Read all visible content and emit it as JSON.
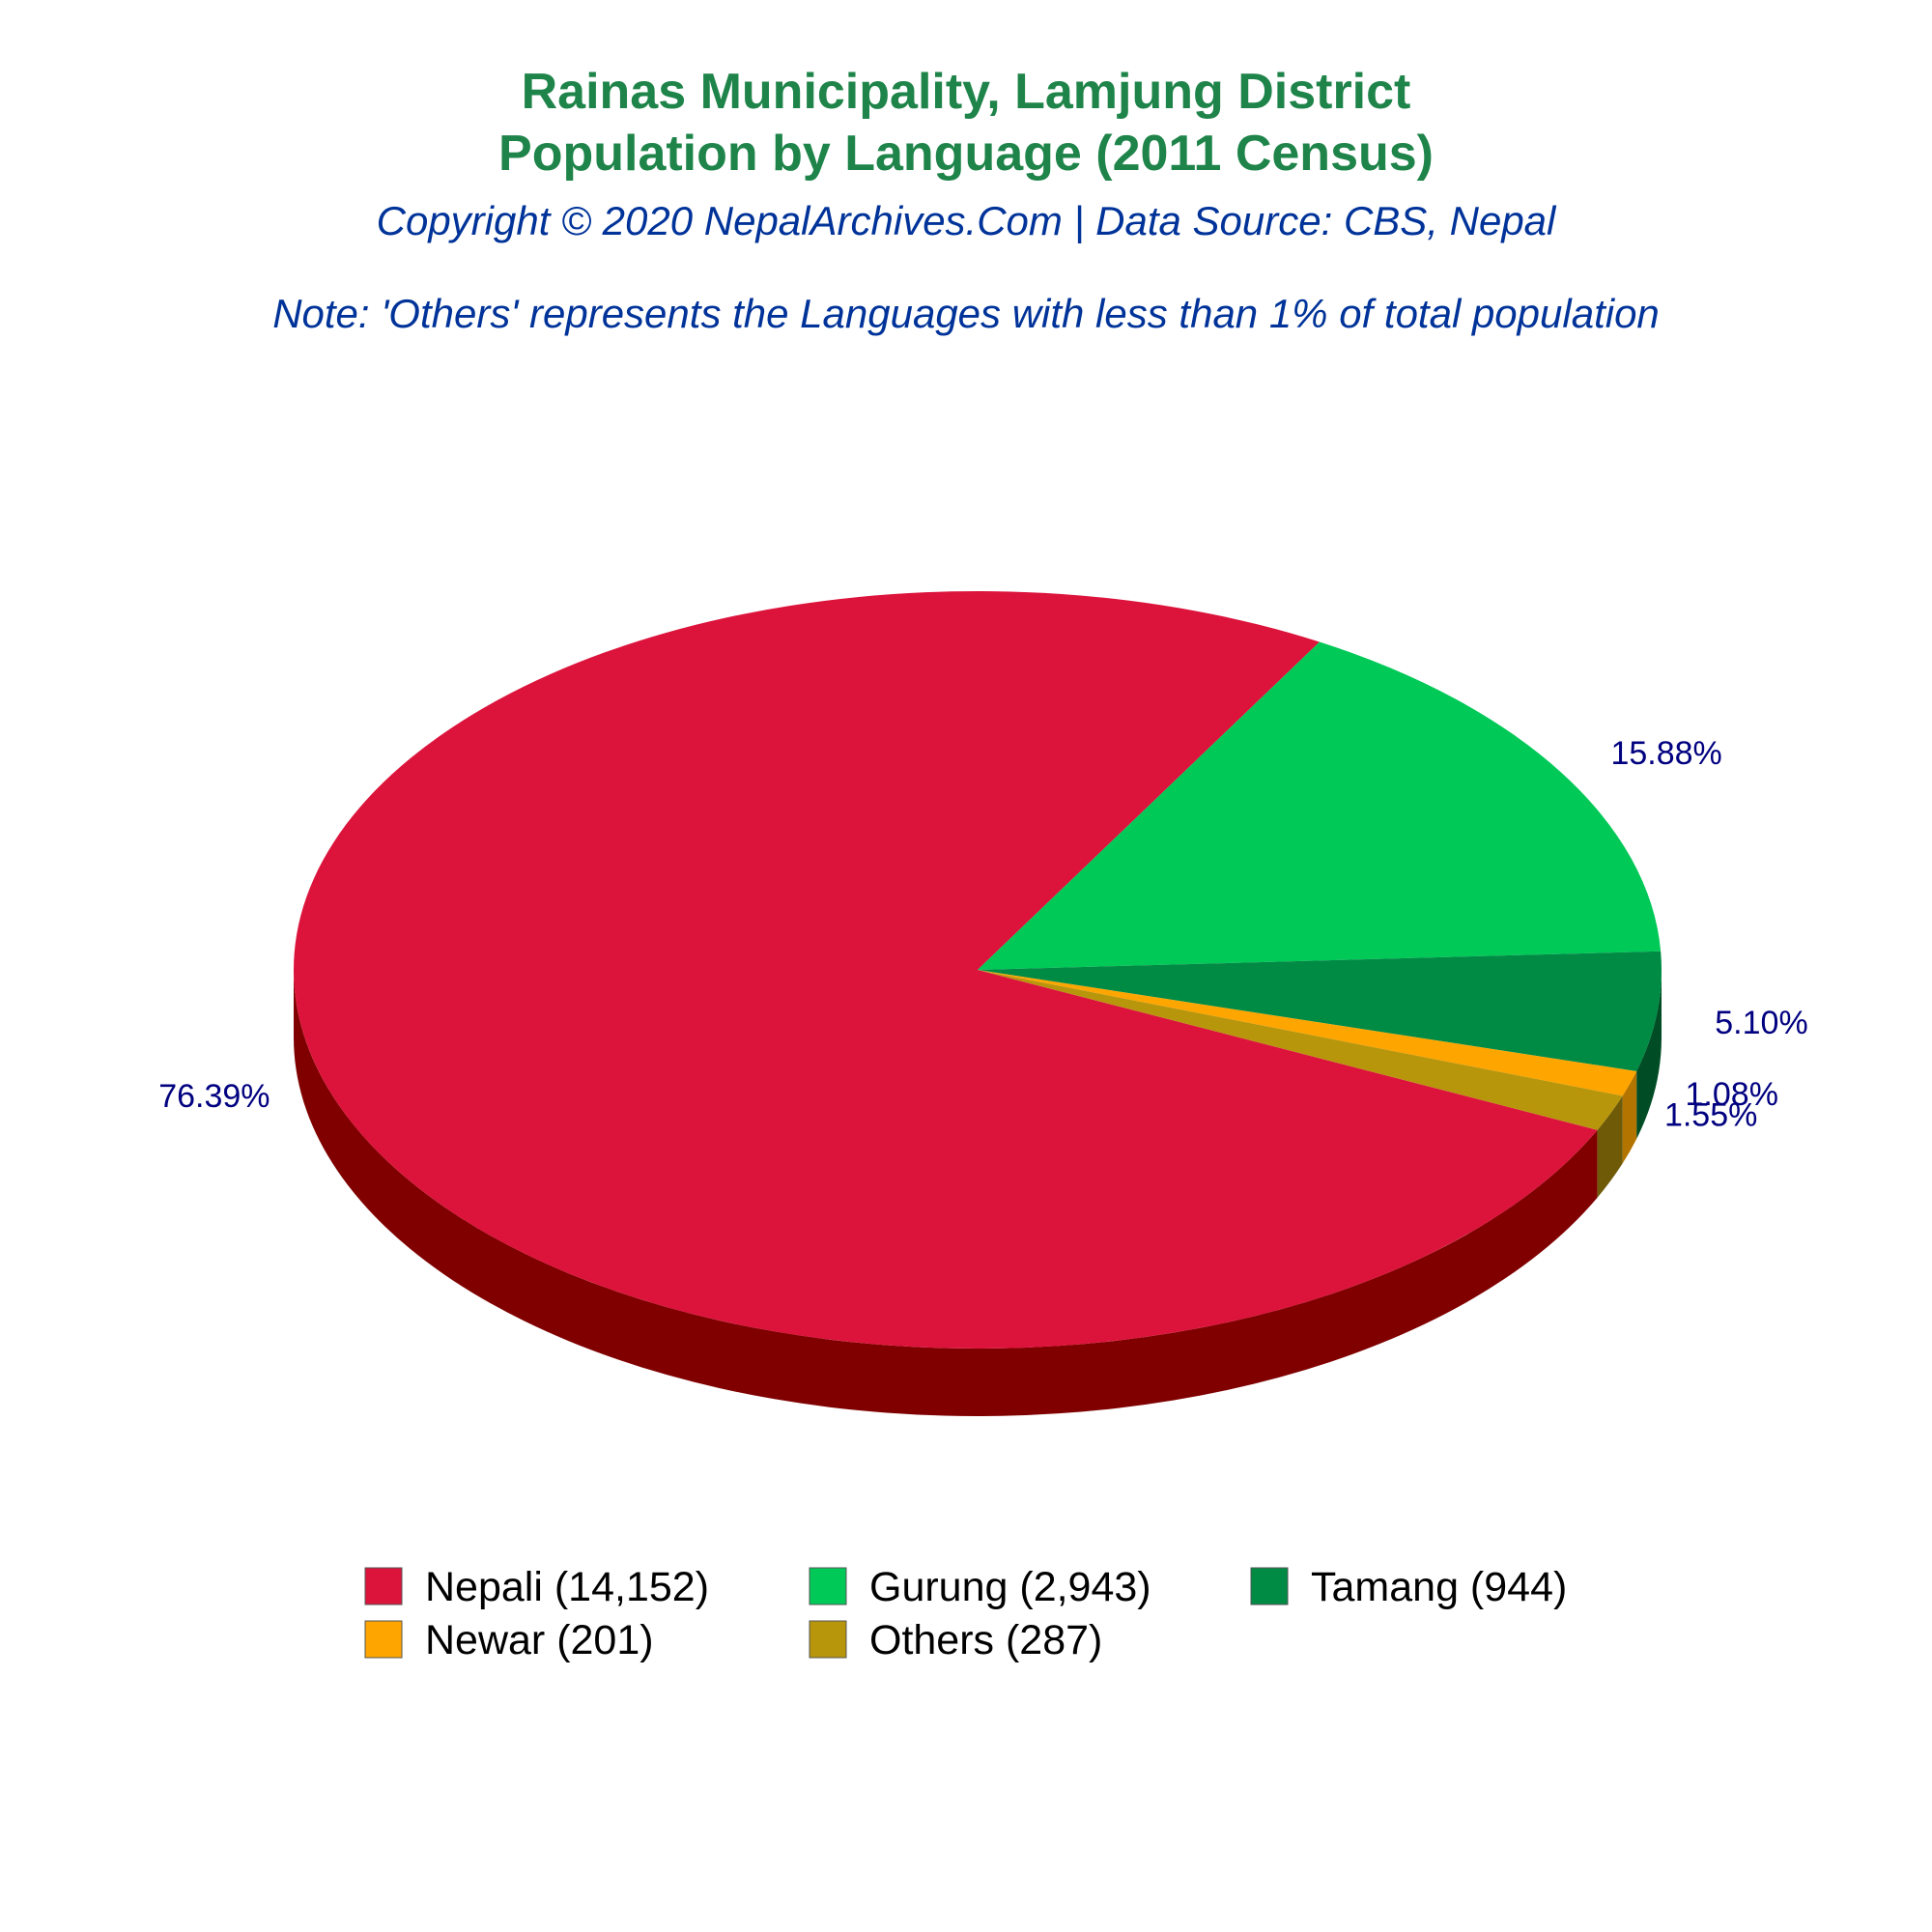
{
  "chart_data": {
    "type": "pie",
    "title": [
      "Rainas Municipality, Lamjung District",
      "Population by Language (2011 Census)"
    ],
    "subtitle": "Copyright © 2020 NepalArchives.Com | Data Source: CBS, Nepal",
    "note": "Note: 'Others' represents the Languages with less than 1% of total population",
    "slices": [
      {
        "label": "Nepali",
        "value": 14152,
        "percent_label": "76.39%",
        "legend": "Nepali (14,152)",
        "color": "#DC143C",
        "side_color": "#800000"
      },
      {
        "label": "Gurung",
        "value": 2943,
        "percent_label": "15.88%",
        "legend": "Gurung (2,943)",
        "color": "#00C957",
        "side_color": "#006400"
      },
      {
        "label": "Tamang",
        "value": 944,
        "percent_label": "5.10%",
        "legend": "Tamang (944)",
        "color": "#008B45",
        "side_color": "#004D25"
      },
      {
        "label": "Newar",
        "value": 201,
        "percent_label": "1.08%",
        "legend": "Newar (201)",
        "color": "#FFA500",
        "side_color": "#B37400"
      },
      {
        "label": "Others",
        "value": 287,
        "percent_label": "1.55%",
        "legend": "Others (287)",
        "color": "#B8960C",
        "side_color": "#6E5A07"
      }
    ],
    "legend_placement": "bottom",
    "colors": {
      "title": "#1E8449",
      "subtitle": "#003399",
      "labels": "#000080"
    }
  }
}
